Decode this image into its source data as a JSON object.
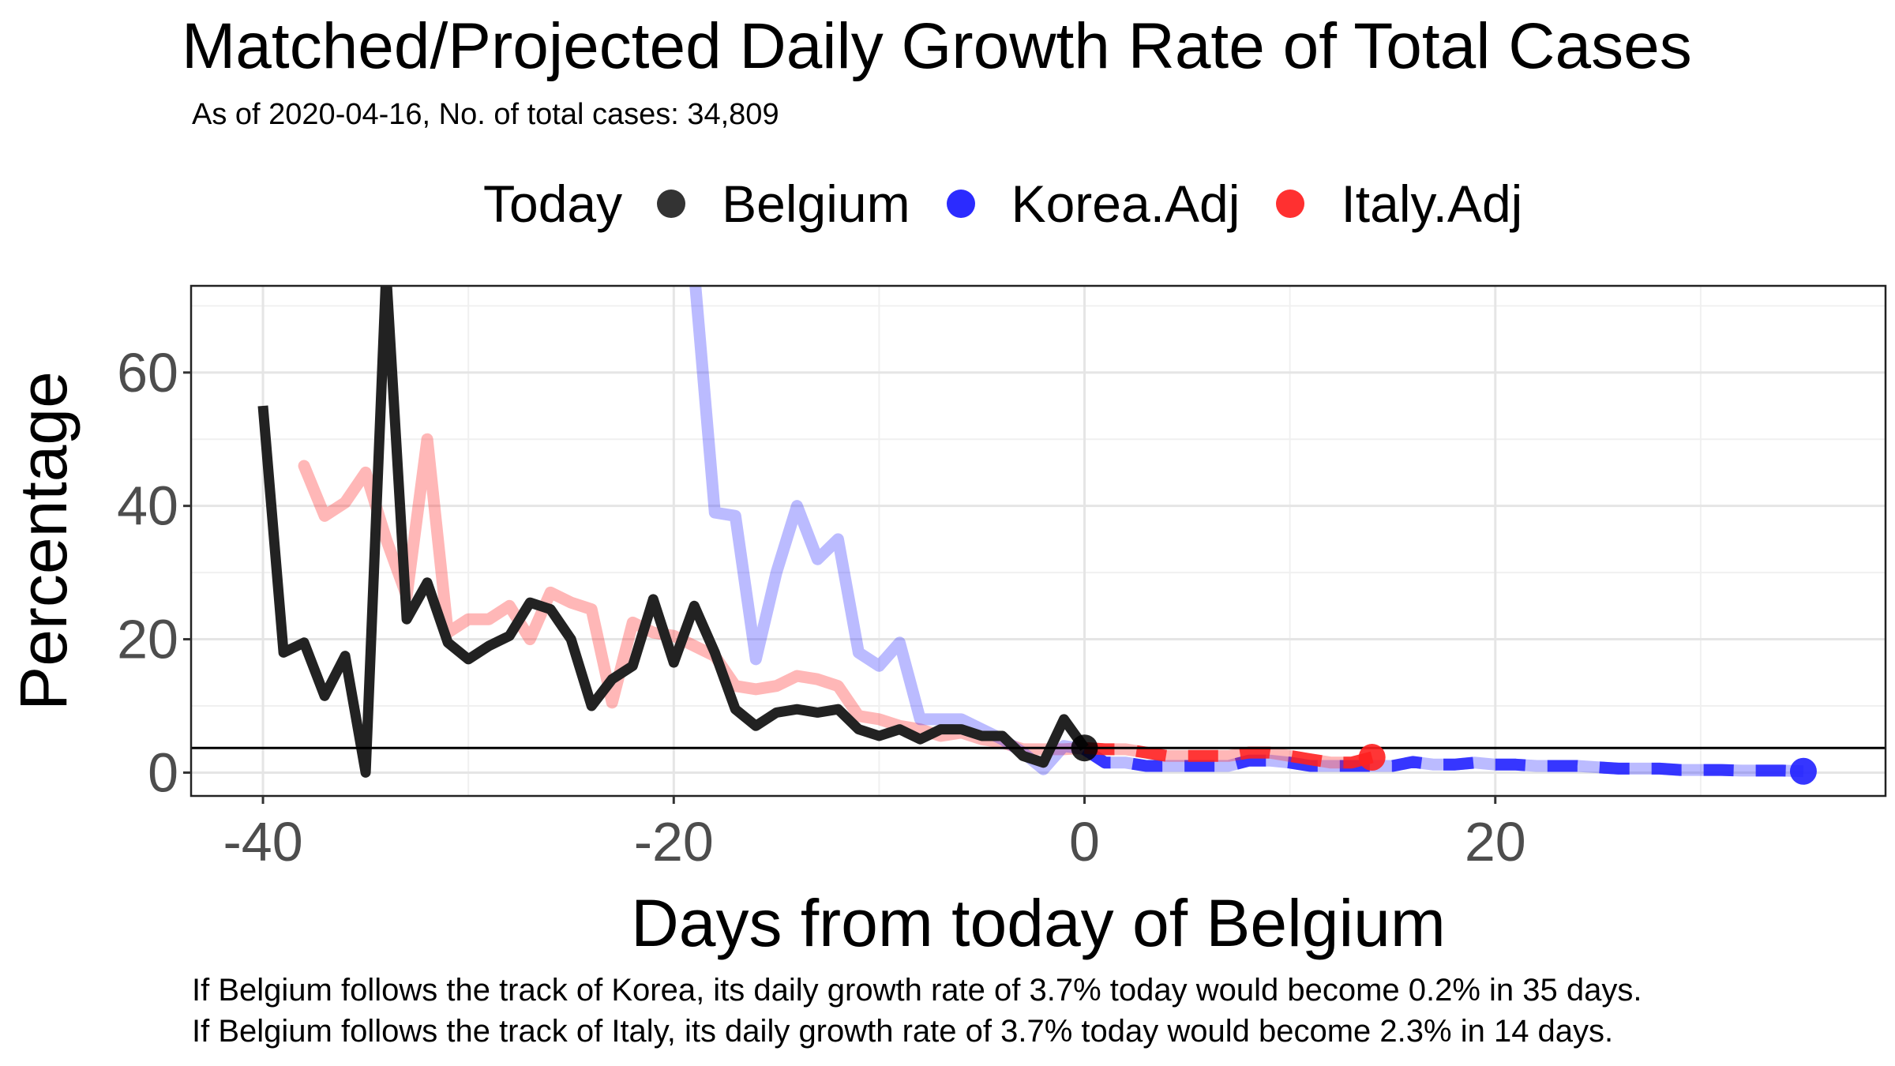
{
  "header": {
    "title": "Matched/Projected Daily Growth Rate of Total Cases",
    "subtitle": "As of 2020-04-16, No. of total cases: 34,809"
  },
  "legend": {
    "title": "Today",
    "items": [
      {
        "label": "Belgium",
        "color": "#222222"
      },
      {
        "label": "Korea.Adj",
        "color": "#1f1fff"
      },
      {
        "label": "Italy.Adj",
        "color": "#ff2020"
      }
    ]
  },
  "captions": {
    "line1": "If Belgium follows the track of Korea, its daily growth rate of 3.7% today would become 0.2% in 35 days.",
    "line2": "If Belgium follows the track of Italy, its daily growth rate of 3.7% today would become 2.3% in 14 days."
  },
  "chart_data": {
    "type": "line",
    "xlabel": "Days from today of Belgium",
    "ylabel": "Percentage",
    "xlim": [
      -43.5,
      39
    ],
    "ylim": [
      -3.5,
      73
    ],
    "xticks": [
      -40,
      -20,
      0,
      20
    ],
    "yticks": [
      0,
      20,
      40,
      60
    ],
    "grid": true,
    "legend_position": "top",
    "reference_line_y": 3.7,
    "series": [
      {
        "name": "Belgium",
        "color": "#222222",
        "x": [
          -40,
          -39,
          -38,
          -37,
          -36,
          -35,
          -34,
          -33,
          -32,
          -31,
          -30,
          -29,
          -28,
          -27,
          -26,
          -25,
          -24,
          -23,
          -22,
          -21,
          -20,
          -19,
          -18,
          -17,
          -16,
          -15,
          -14,
          -13,
          -12,
          -11,
          -10,
          -9,
          -8,
          -7,
          -6,
          -5,
          -4,
          -3,
          -2,
          -1,
          0
        ],
        "y": [
          55,
          18,
          19.5,
          11.5,
          17.5,
          0,
          75,
          23,
          28.5,
          19.5,
          17,
          19,
          20.5,
          25.5,
          24.5,
          20,
          10,
          14,
          16,
          26,
          16.5,
          25,
          18,
          9.5,
          7,
          9,
          9.5,
          9,
          9.5,
          6.5,
          5.5,
          6.5,
          5,
          6.5,
          6.5,
          5.5,
          5.5,
          2.5,
          1.5,
          8,
          3.7
        ]
      },
      {
        "name": "Korea.Adj",
        "color": "#1f1fff",
        "x": [
          -19,
          -18,
          -17,
          -16,
          -15,
          -14,
          -13,
          -12,
          -11,
          -10,
          -9,
          -8,
          -7,
          -6,
          -5,
          -4,
          -3,
          -2,
          -1,
          0
        ],
        "y": [
          75,
          39,
          38.5,
          17,
          30,
          40,
          32,
          35,
          18,
          16,
          19.5,
          8,
          8,
          8,
          6.5,
          5,
          3,
          0.5,
          4,
          3.5
        ],
        "projected": {
          "x": [
            0,
            1,
            2,
            3,
            4,
            5,
            6,
            7,
            8,
            9,
            10,
            11,
            12,
            13,
            14,
            15,
            16,
            17,
            18,
            19,
            20,
            21,
            22,
            23,
            24,
            25,
            26,
            27,
            28,
            29,
            30,
            31,
            32,
            33,
            34,
            35
          ],
          "y": [
            3.5,
            1.5,
            1.5,
            1,
            1,
            1,
            1,
            1,
            1.8,
            1.8,
            1.5,
            1,
            1,
            1,
            1,
            1,
            1.6,
            1.2,
            1.2,
            1.5,
            1.2,
            1.2,
            1,
            1,
            1,
            0.8,
            0.6,
            0.6,
            0.6,
            0.4,
            0.4,
            0.4,
            0.3,
            0.3,
            0.3,
            0.2
          ]
        }
      },
      {
        "name": "Italy.Adj",
        "color": "#ff2020",
        "x": [
          -38,
          -37,
          -36,
          -35,
          -34,
          -33,
          -32,
          -31,
          -30,
          -29,
          -28,
          -27,
          -26,
          -25,
          -24,
          -23,
          -22,
          -21,
          -20,
          -19,
          -18,
          -17,
          -16,
          -15,
          -14,
          -13,
          -12,
          -11,
          -10,
          -9,
          -8,
          -7,
          -6,
          -5,
          -4,
          -3,
          -2,
          -1,
          0
        ],
        "y": [
          46,
          38.5,
          40.5,
          45,
          35,
          26.5,
          50,
          21,
          23,
          23,
          25,
          20,
          27,
          25.5,
          24.5,
          10.5,
          22.5,
          21,
          20.5,
          19,
          17.5,
          13,
          12.5,
          13,
          14.5,
          14,
          13,
          8.5,
          8,
          7,
          6.5,
          5.5,
          6,
          5,
          4.5,
          3.5,
          3.5,
          3.5,
          3.7
        ],
        "projected": {
          "x": [
            0,
            1,
            2,
            3,
            4,
            5,
            6,
            7,
            8,
            9,
            10,
            11,
            12,
            13,
            14
          ],
          "y": [
            3.7,
            3.5,
            3.5,
            3,
            2.5,
            2.5,
            2.5,
            2.5,
            3,
            3,
            2.5,
            2,
            1.5,
            1.5,
            2.3
          ]
        }
      }
    ]
  }
}
